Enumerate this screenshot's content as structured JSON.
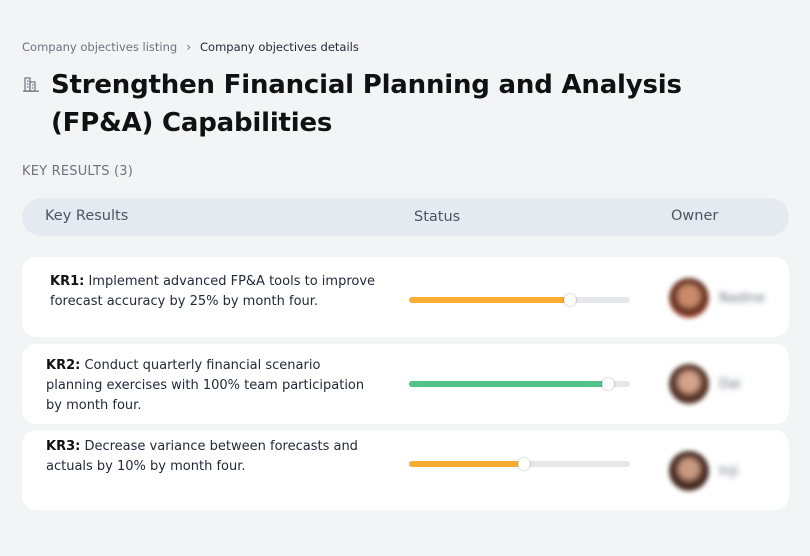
{
  "breadcrumb": {
    "parent": "Company objectives listing",
    "separator": "›",
    "current": "Company objectives details"
  },
  "objective": {
    "icon": "building-icon",
    "title": "Strengthen Financial Planning and Analysis (FP&A) Capabilities"
  },
  "section": {
    "label": "KEY RESULTS (3)"
  },
  "table": {
    "headers": {
      "key_results": "Key Results",
      "status": "Status",
      "owner": "Owner"
    }
  },
  "key_results": [
    {
      "code": "KR1:",
      "text": "Implement advanced FP&A tools to improve forecast accuracy by 25% by month four.",
      "progress": 0.73,
      "color": "#fbac34",
      "owner": "Nadine"
    },
    {
      "code": "KR2:",
      "text": "Conduct quarterly financial scenario planning exercises with 100% team participation by month four.",
      "progress": 0.9,
      "color": "#52c28a",
      "owner": "Dai"
    },
    {
      "code": "KR3:",
      "text": "Decrease variance between forecasts and actuals by 10% by month four.",
      "progress": 0.52,
      "color": "#fbac34",
      "owner": "Inji"
    }
  ]
}
